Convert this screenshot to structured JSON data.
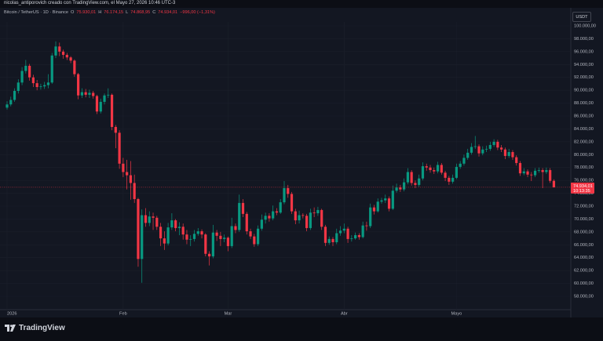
{
  "chart_data": {
    "type": "candlestick",
    "credit": "nicolas_antiporovich creado con TradingView.com, el Mayo 27, 2026 10:46 UTC-3",
    "symbol": "Bitcoin / TetherUS · 1D · Binance",
    "ohlc_legend": [
      {
        "key": "O",
        "value": "75.930,01"
      },
      {
        "key": "H",
        "value": "76.174,15"
      },
      {
        "key": "L",
        "value": "74.868,95"
      },
      {
        "key": "C",
        "value": "74.934,01"
      }
    ],
    "change": "−996,00 (−1,31%)",
    "currency": "USDT",
    "last_price": {
      "value": 74934.01,
      "label": "74.934,01"
    },
    "countdown": "10:13:35",
    "logo": "TradingView",
    "up_color": "#089981",
    "down_color": "#f23645",
    "grid": true,
    "ylim": [
      58000,
      100000
    ],
    "yticks": [
      {
        "value": 58000,
        "label": "58.000,00"
      },
      {
        "value": 60000,
        "label": "60.000,00"
      },
      {
        "value": 62000,
        "label": "62.000,00"
      },
      {
        "value": 64000,
        "label": "64.000,00"
      },
      {
        "value": 66000,
        "label": "66.000,00"
      },
      {
        "value": 68000,
        "label": "68.000,00"
      },
      {
        "value": 70000,
        "label": "70.000,00"
      },
      {
        "value": 72000,
        "label": "72.000,00"
      },
      {
        "value": 74000,
        "label": "74.000,00"
      },
      {
        "value": 76000,
        "label": "76.000,00"
      },
      {
        "value": 78000,
        "label": "78.000,00"
      },
      {
        "value": 80000,
        "label": "80.000,00"
      },
      {
        "value": 82000,
        "label": "82.000,00"
      },
      {
        "value": 84000,
        "label": "84.000,00"
      },
      {
        "value": 86000,
        "label": "86.000,00"
      },
      {
        "value": 88000,
        "label": "88.000,00"
      },
      {
        "value": 90000,
        "label": "90.000,00"
      },
      {
        "value": 92000,
        "label": "92.000,00"
      },
      {
        "value": 94000,
        "label": "94.000,00"
      },
      {
        "value": 96000,
        "label": "96.000,00"
      },
      {
        "value": 98000,
        "label": "98.000,00"
      },
      {
        "value": 100000,
        "label": "100.000,00"
      }
    ],
    "xticks": [
      {
        "value": 0,
        "label": "2026"
      },
      {
        "value": 31,
        "label": "Feb"
      },
      {
        "value": 59,
        "label": "Mar"
      },
      {
        "value": 90,
        "label": "Abr"
      },
      {
        "value": 120,
        "label": "Mayo"
      }
    ],
    "candles": [
      [
        87300,
        88300,
        87000,
        87800
      ],
      [
        87800,
        89000,
        87500,
        88500
      ],
      [
        88500,
        90300,
        88200,
        89900
      ],
      [
        89900,
        91700,
        89500,
        91200
      ],
      [
        91200,
        93600,
        90800,
        93000
      ],
      [
        93000,
        94700,
        92600,
        93800
      ],
      [
        93800,
        94100,
        91500,
        92000
      ],
      [
        92000,
        92400,
        90500,
        91100
      ],
      [
        91100,
        91600,
        90000,
        90500
      ],
      [
        90500,
        91000,
        90100,
        90600
      ],
      [
        90600,
        91300,
        90200,
        90800
      ],
      [
        90800,
        92500,
        90300,
        91200
      ],
      [
        91200,
        95800,
        91000,
        95400
      ],
      [
        95400,
        97600,
        95000,
        96800
      ],
      [
        96800,
        97400,
        95300,
        96000
      ],
      [
        96000,
        96300,
        94900,
        95500
      ],
      [
        95500,
        95800,
        94700,
        95100
      ],
      [
        95100,
        95300,
        94200,
        94600
      ],
      [
        94600,
        94800,
        92100,
        92500
      ],
      [
        92500,
        92700,
        88600,
        89200
      ],
      [
        89200,
        90300,
        88800,
        89700
      ],
      [
        89700,
        90200,
        88900,
        89300
      ],
      [
        89300,
        90100,
        88800,
        89600
      ],
      [
        89600,
        89900,
        88700,
        89100
      ],
      [
        89100,
        89300,
        86300,
        86700
      ],
      [
        86700,
        88700,
        86400,
        88200
      ],
      [
        88200,
        89500,
        87800,
        89200
      ],
      [
        89200,
        90300,
        88800,
        89300
      ],
      [
        89300,
        89500,
        83800,
        84300
      ],
      [
        84300,
        84600,
        81000,
        83400
      ],
      [
        83400,
        83800,
        77800,
        78600
      ],
      [
        78600,
        79500,
        76500,
        77300
      ],
      [
        77300,
        79200,
        74600,
        76800
      ],
      [
        76800,
        79000,
        73000,
        75600
      ],
      [
        75600,
        76900,
        72500,
        73100
      ],
      [
        73100,
        73300,
        62600,
        63800
      ],
      [
        63800,
        71500,
        60100,
        70600
      ],
      [
        70600,
        71700,
        68800,
        69400
      ],
      [
        69400,
        71200,
        68900,
        70400
      ],
      [
        70400,
        71000,
        68300,
        70200
      ],
      [
        70200,
        70500,
        68300,
        68800
      ],
      [
        68800,
        69400,
        65800,
        67000
      ],
      [
        67000,
        68100,
        65200,
        66200
      ],
      [
        66200,
        69400,
        65900,
        68700
      ],
      [
        68700,
        70900,
        68300,
        69800
      ],
      [
        69800,
        70000,
        68100,
        68600
      ],
      [
        68600,
        69500,
        67500,
        68800
      ],
      [
        68800,
        69300,
        66800,
        67600
      ],
      [
        67600,
        68300,
        66100,
        66800
      ],
      [
        66800,
        67500,
        65800,
        66900
      ],
      [
        66900,
        68300,
        66500,
        67700
      ],
      [
        67700,
        68600,
        67400,
        68100
      ],
      [
        68100,
        68400,
        67000,
        67600
      ],
      [
        67600,
        67800,
        64200,
        64600
      ],
      [
        64600,
        65000,
        62800,
        64200
      ],
      [
        64200,
        69100,
        63900,
        67900
      ],
      [
        67900,
        68300,
        66600,
        67400
      ],
      [
        67400,
        68000,
        65800,
        66900
      ],
      [
        66900,
        67600,
        66400,
        67100
      ],
      [
        67100,
        67300,
        65000,
        65800
      ],
      [
        65800,
        70200,
        65500,
        68900
      ],
      [
        68900,
        69300,
        67800,
        68300
      ],
      [
        68300,
        73800,
        68000,
        72500
      ],
      [
        72500,
        73100,
        70300,
        70800
      ],
      [
        70800,
        71100,
        67600,
        68100
      ],
      [
        68100,
        68500,
        66900,
        67300
      ],
      [
        67300,
        67700,
        65700,
        66100
      ],
      [
        66100,
        69000,
        65800,
        68500
      ],
      [
        68500,
        70700,
        68200,
        69900
      ],
      [
        69900,
        71000,
        69300,
        70500
      ],
      [
        70500,
        70900,
        69600,
        70100
      ],
      [
        70100,
        72100,
        69800,
        71200
      ],
      [
        71200,
        71700,
        70600,
        71000
      ],
      [
        71000,
        73100,
        70800,
        72600
      ],
      [
        72600,
        75900,
        72300,
        74800
      ],
      [
        74800,
        75300,
        73300,
        73900
      ],
      [
        73900,
        74200,
        70800,
        71200
      ],
      [
        71200,
        71600,
        69200,
        69800
      ],
      [
        69800,
        71300,
        69300,
        70600
      ],
      [
        70600,
        70900,
        70100,
        70500
      ],
      [
        70500,
        70800,
        68100,
        68600
      ],
      [
        68600,
        71600,
        68300,
        71000
      ],
      [
        71000,
        71800,
        70300,
        70900
      ],
      [
        70900,
        71900,
        70500,
        71400
      ],
      [
        71400,
        71600,
        68300,
        68800
      ],
      [
        68800,
        69100,
        65800,
        66300
      ],
      [
        66300,
        67300,
        66000,
        66900
      ],
      [
        66900,
        67200,
        65800,
        66400
      ],
      [
        66400,
        68500,
        66100,
        67800
      ],
      [
        67800,
        68900,
        67400,
        68200
      ],
      [
        68200,
        69300,
        67800,
        68500
      ],
      [
        68500,
        68800,
        66300,
        66900
      ],
      [
        66900,
        67500,
        66500,
        67000
      ],
      [
        67000,
        67900,
        66800,
        67500
      ],
      [
        67500,
        67800,
        66800,
        67200
      ],
      [
        67200,
        69600,
        67000,
        69000
      ],
      [
        69000,
        69600,
        68200,
        68900
      ],
      [
        68900,
        72400,
        68600,
        71800
      ],
      [
        71800,
        72200,
        70700,
        71200
      ],
      [
        71200,
        73200,
        71000,
        72700
      ],
      [
        72700,
        73300,
        72400,
        72900
      ],
      [
        72900,
        73800,
        72500,
        73200
      ],
      [
        73200,
        73500,
        71200,
        71600
      ],
      [
        71600,
        75200,
        71400,
        74400
      ],
      [
        74400,
        75500,
        74100,
        74900
      ],
      [
        74900,
        75300,
        74200,
        74600
      ],
      [
        74600,
        76300,
        74300,
        75700
      ],
      [
        75700,
        77900,
        75400,
        77300
      ],
      [
        77300,
        77600,
        75200,
        75600
      ],
      [
        75600,
        76000,
        74800,
        75300
      ],
      [
        75300,
        76900,
        75000,
        76300
      ],
      [
        76300,
        78800,
        76000,
        78200
      ],
      [
        78200,
        78600,
        77500,
        78000
      ],
      [
        78000,
        78400,
        77200,
        77600
      ],
      [
        77600,
        78000,
        77000,
        77400
      ],
      [
        77400,
        78900,
        77100,
        78400
      ],
      [
        78400,
        78700,
        76900,
        77200
      ],
      [
        77200,
        77500,
        75900,
        76400
      ],
      [
        76400,
        76700,
        75300,
        75800
      ],
      [
        75800,
        76900,
        75500,
        76400
      ],
      [
        76400,
        78600,
        76200,
        78100
      ],
      [
        78100,
        79000,
        77800,
        78600
      ],
      [
        78600,
        80000,
        78300,
        79500
      ],
      [
        79500,
        80900,
        79200,
        80300
      ],
      [
        80300,
        81800,
        80000,
        81200
      ],
      [
        81200,
        82900,
        80900,
        81300
      ],
      [
        81300,
        81600,
        79700,
        80200
      ],
      [
        80200,
        81300,
        79900,
        80800
      ],
      [
        80800,
        81400,
        80400,
        80900
      ],
      [
        80900,
        82000,
        80600,
        81500
      ],
      [
        81500,
        82400,
        81200,
        82000
      ],
      [
        82000,
        82300,
        80700,
        81100
      ],
      [
        81100,
        81500,
        80400,
        80800
      ],
      [
        80800,
        81100,
        79300,
        79800
      ],
      [
        79800,
        80900,
        79500,
        80400
      ],
      [
        80400,
        80700,
        79200,
        79600
      ],
      [
        79600,
        79900,
        78300,
        78700
      ],
      [
        78700,
        79000,
        76700,
        77100
      ],
      [
        77100,
        77900,
        76800,
        77400
      ],
      [
        77400,
        77700,
        76500,
        76900
      ],
      [
        76900,
        77300,
        75900,
        76800
      ],
      [
        76800,
        77900,
        76500,
        77500
      ],
      [
        77500,
        78000,
        77200,
        77600
      ],
      [
        77600,
        77900,
        74800,
        77300
      ],
      [
        77300,
        78000,
        77000,
        77600
      ],
      [
        77600,
        77900,
        75600,
        75930.01
      ],
      [
        75930.01,
        76174.15,
        74868.95,
        74934.01
      ]
    ]
  }
}
